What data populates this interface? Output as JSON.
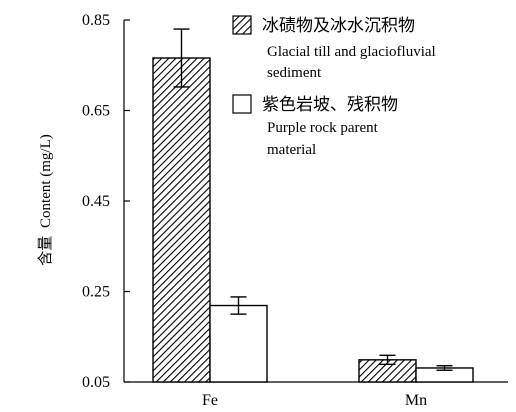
{
  "chart_data": {
    "type": "bar",
    "categories": [
      "Fe",
      "Mn"
    ],
    "series": [
      {
        "name": "冰碛物及冰水沉积物 Glacial till and glaciofluvial sediment",
        "legend_zh": "冰碛物及冰水沉积物",
        "legend_en": [
          "Glacial till and glaciofluvial",
          "sediment"
        ],
        "values": [
          0.766,
          0.099
        ],
        "errors": [
          0.064,
          0.01
        ],
        "pattern": "diagonal-hatch"
      },
      {
        "name": "紫色岩坡、残积物 Purple rock parent material",
        "legend_zh": "紫色岩坡、残积物",
        "legend_en": [
          "Purple rock parent",
          "material"
        ],
        "values": [
          0.219,
          0.081
        ],
        "errors": [
          0.019,
          0.005
        ],
        "pattern": "white"
      }
    ],
    "ylabel_zh": "含量",
    "ylabel": "Content (mg/L)",
    "yticks": [
      "0.05",
      "0.25",
      "0.45",
      "0.65",
      "0.85"
    ],
    "ylim": [
      0.05,
      0.85
    ],
    "grid": false,
    "legend_position": "top-right"
  }
}
